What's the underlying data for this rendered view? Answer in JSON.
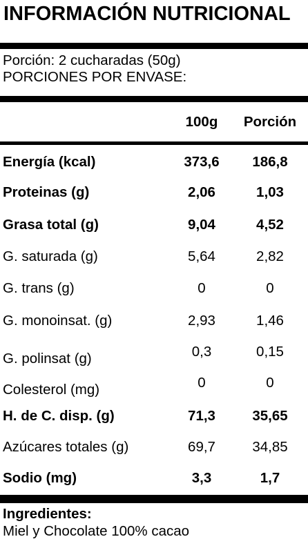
{
  "title": "INFORMACIÓN NUTRICIONAL",
  "serving": {
    "size": "Porción: 2 cucharadas (50g)",
    "per_package": "PORCIONES POR ENVASE:"
  },
  "columns": {
    "per100": "100g",
    "perServing": "Porción"
  },
  "rows": [
    {
      "name": "Energía (kcal)",
      "per100": "373,6",
      "perServing": "186,8",
      "bold": true
    },
    {
      "name": "Proteinas (g)",
      "per100": "2,06",
      "perServing": "1,03",
      "bold": true
    },
    {
      "name": "Grasa total (g)",
      "per100": "9,04",
      "perServing": "4,52",
      "bold": true
    },
    {
      "name": "G. saturada (g)",
      "per100": "5,64",
      "perServing": "2,82",
      "bold": false
    },
    {
      "name": "G. trans (g)",
      "per100": "0",
      "perServing": "0",
      "bold": false
    },
    {
      "name": "G. monoinsat. (g)",
      "per100": "2,93",
      "perServing": "1,46",
      "bold": false
    },
    {
      "name": "G. polinsat (g)",
      "per100": "0,3",
      "perServing": "0,15",
      "bold": false
    },
    {
      "name": "Colesterol (mg)",
      "per100": "0",
      "perServing": "0",
      "bold": false
    },
    {
      "name": "H. de C. disp. (g)",
      "per100": "71,3",
      "perServing": "35,65",
      "bold": true
    },
    {
      "name": "Azúcares totales (g)",
      "per100": "69,7",
      "perServing": "34,85",
      "bold": false
    },
    {
      "name": "Sodio (mg)",
      "per100": "3,3",
      "perServing": "1,7",
      "bold": true
    }
  ],
  "ingredients": {
    "title": "Ingredientes:",
    "text": "Miel y Chocolate 100% cacao"
  }
}
